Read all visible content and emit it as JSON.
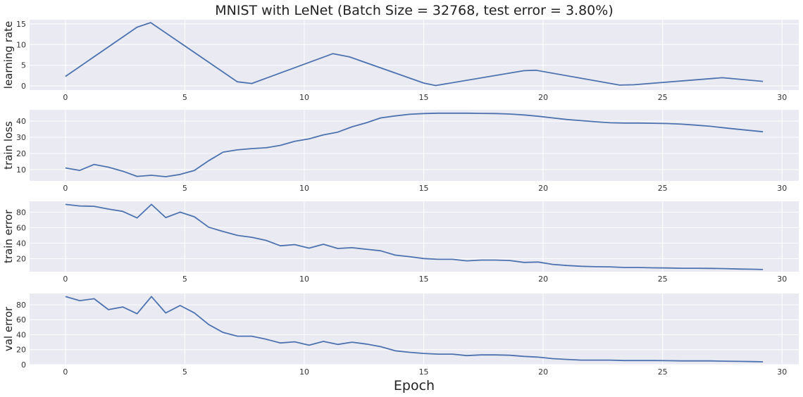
{
  "chart_data": {
    "type": "line",
    "title": "MNIST with LeNet (Batch Size = 32768, test error = 3.80%)",
    "xlabel": "Epoch",
    "xlim": [
      -1.5,
      30.7
    ],
    "xticks": [
      0,
      5,
      10,
      15,
      20,
      25,
      30
    ],
    "grid": true,
    "line_color": "#4c72b0",
    "background_color": "#eaeaf2",
    "panels": [
      {
        "ylabel": "learning rate",
        "ylim": [
          -1,
          16
        ],
        "yticks": [
          0,
          5,
          10,
          15
        ],
        "x": [
          0,
          3.0,
          3.57,
          7.2,
          7.8,
          11.2,
          11.9,
          15.0,
          15.5,
          19.2,
          19.7,
          23.2,
          23.8,
          27.5,
          29.2
        ],
        "y": [
          2.3,
          14.2,
          15.3,
          1.0,
          0.6,
          7.8,
          7.0,
          0.7,
          0.1,
          3.7,
          3.8,
          0.2,
          0.3,
          2.0,
          1.1
        ]
      },
      {
        "ylabel": "train loss",
        "ylim": [
          3,
          47
        ],
        "yticks": [
          10,
          20,
          30,
          40
        ],
        "x": [
          0,
          0.6,
          1.2,
          1.8,
          2.4,
          3.0,
          3.6,
          4.2,
          4.8,
          5.4,
          6.0,
          6.6,
          7.2,
          7.8,
          8.4,
          9.0,
          9.6,
          10.2,
          10.8,
          11.4,
          12.0,
          12.6,
          13.2,
          13.8,
          14.4,
          15.0,
          15.6,
          16.2,
          16.8,
          17.4,
          18.0,
          18.6,
          19.2,
          19.8,
          20.4,
          21.0,
          21.6,
          22.2,
          22.8,
          23.4,
          24.0,
          24.6,
          25.2,
          25.8,
          26.4,
          27.0,
          27.6,
          28.2,
          28.8,
          29.2
        ],
        "y": [
          11,
          9.5,
          13.2,
          11.5,
          9.0,
          5.8,
          6.5,
          5.6,
          7.0,
          9.5,
          15.5,
          20.8,
          22.2,
          23.0,
          23.5,
          25.0,
          27.5,
          29.0,
          31.5,
          33.2,
          36.5,
          39.0,
          42.0,
          43.2,
          44.2,
          44.7,
          44.9,
          44.9,
          44.9,
          44.8,
          44.7,
          44.4,
          43.8,
          43.0,
          42.0,
          41.0,
          40.3,
          39.6,
          39.0,
          38.8,
          38.8,
          38.7,
          38.5,
          38.1,
          37.5,
          36.8,
          35.8,
          34.9,
          34.0,
          33.4
        ]
      },
      {
        "ylabel": "train error",
        "ylim": [
          3,
          94
        ],
        "yticks": [
          20,
          40,
          60,
          80
        ],
        "x": [
          0,
          0.6,
          1.2,
          1.8,
          2.4,
          3.0,
          3.6,
          4.2,
          4.8,
          5.4,
          6.0,
          6.6,
          7.2,
          7.8,
          8.4,
          9.0,
          9.6,
          10.2,
          10.8,
          11.4,
          12.0,
          12.6,
          13.2,
          13.8,
          14.4,
          15.0,
          15.6,
          16.2,
          16.8,
          17.4,
          18.0,
          18.6,
          19.2,
          19.8,
          20.4,
          21.0,
          21.6,
          22.2,
          22.8,
          23.4,
          24.0,
          24.6,
          25.2,
          25.8,
          26.4,
          27.0,
          27.6,
          28.2,
          28.8,
          29.2
        ],
        "y": [
          90,
          88,
          87.5,
          84,
          81,
          72.5,
          90,
          73,
          80,
          74,
          60.5,
          55,
          50,
          47.5,
          43.5,
          36.5,
          38,
          33.5,
          38.5,
          33,
          34,
          32,
          30,
          24.5,
          22.5,
          20,
          19,
          19,
          17,
          18,
          18,
          17.5,
          15,
          15.5,
          12.5,
          11,
          10,
          9.5,
          9.3,
          8.5,
          8.5,
          8.0,
          7.8,
          7.5,
          7.5,
          7.3,
          7.0,
          6.5,
          6.2,
          5.8
        ]
      },
      {
        "ylabel": "val error",
        "ylim": [
          0,
          95
        ],
        "yticks": [
          0,
          20,
          40,
          60,
          80
        ],
        "x": [
          0,
          0.6,
          1.2,
          1.8,
          2.4,
          3.0,
          3.6,
          4.2,
          4.8,
          5.4,
          6.0,
          6.6,
          7.2,
          7.8,
          8.4,
          9.0,
          9.6,
          10.2,
          10.8,
          11.4,
          12.0,
          12.6,
          13.2,
          13.8,
          14.4,
          15.0,
          15.6,
          16.2,
          16.8,
          17.4,
          18.0,
          18.6,
          19.2,
          19.8,
          20.4,
          21.0,
          21.6,
          22.2,
          22.8,
          23.4,
          24.0,
          24.6,
          25.2,
          25.8,
          26.4,
          27.0,
          27.6,
          28.2,
          28.8,
          29.2
        ],
        "y": [
          91,
          85.5,
          88,
          73.5,
          77,
          68,
          91,
          69,
          79,
          69,
          53.5,
          43,
          38,
          38,
          34,
          29,
          30.5,
          26,
          31,
          27,
          30,
          27.5,
          24,
          18.5,
          16.5,
          15,
          14,
          14,
          12,
          13,
          13,
          12.5,
          11,
          10,
          8,
          7,
          6,
          6,
          6,
          5.5,
          5.5,
          5.5,
          5.3,
          5.0,
          5.0,
          5.0,
          4.6,
          4.3,
          4.0,
          3.8
        ]
      }
    ]
  }
}
